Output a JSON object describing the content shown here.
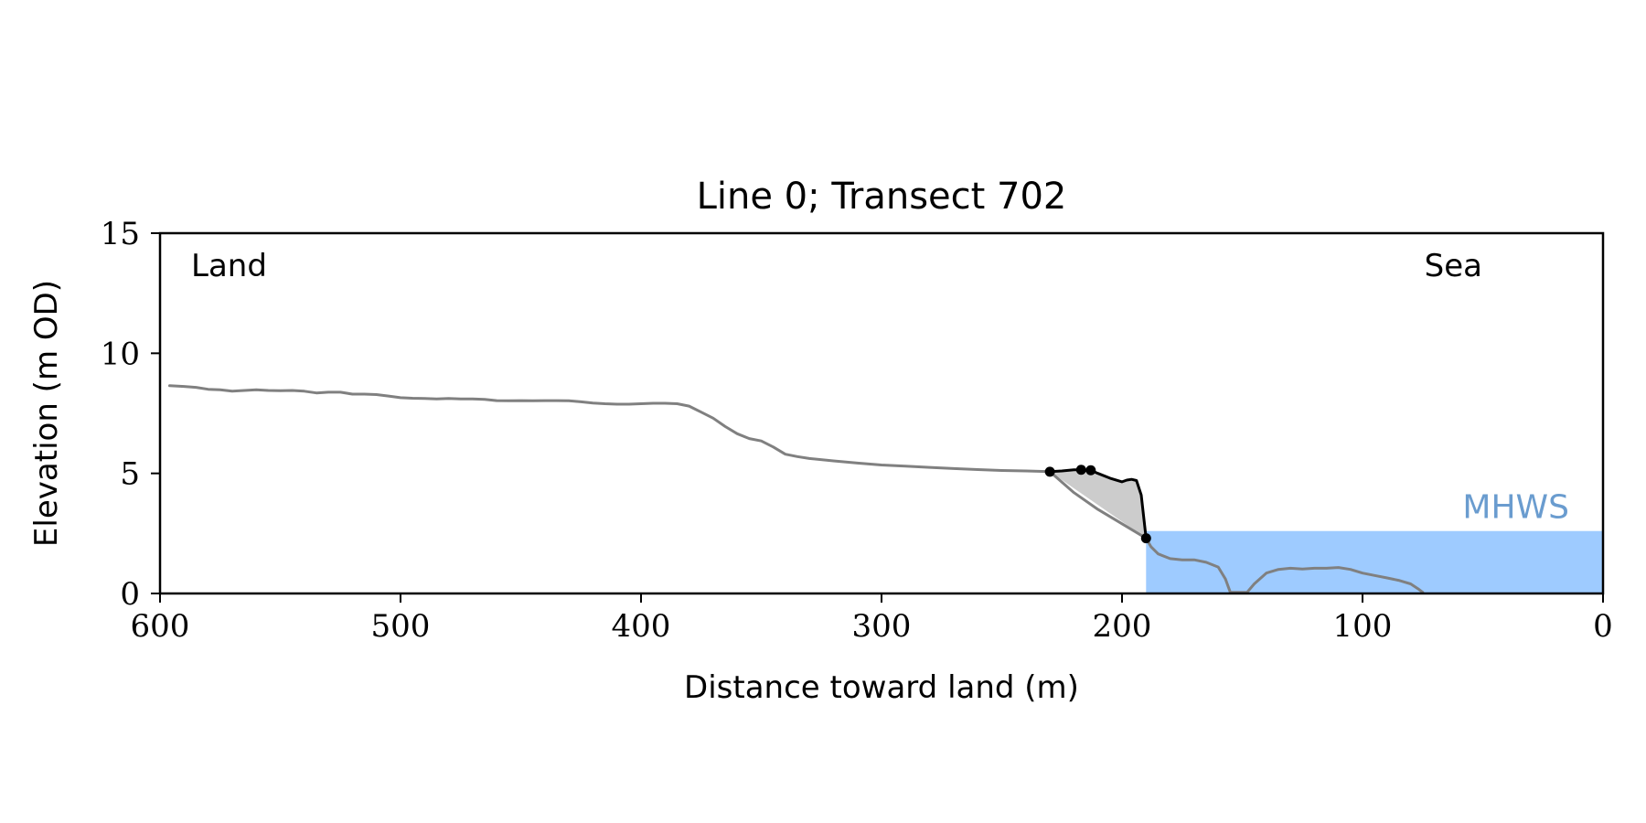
{
  "chart_data": {
    "type": "line",
    "title": "Line 0; Transect 702",
    "xlabel": "Distance toward land (m)",
    "ylabel": "Elevation (m OD)",
    "xlim": [
      600,
      0
    ],
    "ylim": [
      0,
      15
    ],
    "xticks": [
      {
        "value": 600,
        "label": "600"
      },
      {
        "value": 500,
        "label": "500"
      },
      {
        "value": 400,
        "label": "400"
      },
      {
        "value": 300,
        "label": "300"
      },
      {
        "value": 200,
        "label": "200"
      },
      {
        "value": 100,
        "label": "100"
      },
      {
        "value": 0,
        "label": "0"
      }
    ],
    "yticks": [
      {
        "value": 0,
        "label": "0"
      },
      {
        "value": 5,
        "label": "5"
      },
      {
        "value": 10,
        "label": "10"
      },
      {
        "value": 15,
        "label": "15"
      }
    ],
    "grid": false,
    "annotations": {
      "land": "Land",
      "sea": "Sea",
      "water_level_label": "MHWS"
    },
    "water_level": {
      "value": 2.6,
      "x_from": 190,
      "x_to": 0,
      "color": "#9ecbff",
      "label_color": "#6a9ccf"
    },
    "profile_color": "#808080",
    "feature_color": "#000000",
    "fill_color": "#cccccc",
    "profile": [
      [
        596,
        8.65
      ],
      [
        590,
        8.62
      ],
      [
        585,
        8.58
      ],
      [
        580,
        8.5
      ],
      [
        575,
        8.48
      ],
      [
        570,
        8.42
      ],
      [
        565,
        8.45
      ],
      [
        560,
        8.48
      ],
      [
        555,
        8.45
      ],
      [
        550,
        8.44
      ],
      [
        545,
        8.45
      ],
      [
        540,
        8.42
      ],
      [
        535,
        8.35
      ],
      [
        530,
        8.38
      ],
      [
        525,
        8.38
      ],
      [
        520,
        8.3
      ],
      [
        515,
        8.3
      ],
      [
        510,
        8.28
      ],
      [
        505,
        8.22
      ],
      [
        500,
        8.15
      ],
      [
        495,
        8.13
      ],
      [
        490,
        8.12
      ],
      [
        485,
        8.1
      ],
      [
        480,
        8.12
      ],
      [
        475,
        8.1
      ],
      [
        470,
        8.1
      ],
      [
        465,
        8.08
      ],
      [
        460,
        8.03
      ],
      [
        455,
        8.02
      ],
      [
        450,
        8.03
      ],
      [
        445,
        8.02
      ],
      [
        440,
        8.03
      ],
      [
        435,
        8.03
      ],
      [
        430,
        8.02
      ],
      [
        425,
        7.98
      ],
      [
        420,
        7.93
      ],
      [
        415,
        7.9
      ],
      [
        410,
        7.88
      ],
      [
        405,
        7.88
      ],
      [
        400,
        7.9
      ],
      [
        395,
        7.92
      ],
      [
        390,
        7.92
      ],
      [
        385,
        7.9
      ],
      [
        380,
        7.8
      ],
      [
        375,
        7.55
      ],
      [
        370,
        7.3
      ],
      [
        365,
        6.95
      ],
      [
        360,
        6.65
      ],
      [
        355,
        6.45
      ],
      [
        350,
        6.35
      ],
      [
        345,
        6.1
      ],
      [
        340,
        5.8
      ],
      [
        335,
        5.7
      ],
      [
        330,
        5.62
      ],
      [
        320,
        5.52
      ],
      [
        310,
        5.43
      ],
      [
        300,
        5.35
      ],
      [
        290,
        5.3
      ],
      [
        280,
        5.25
      ],
      [
        270,
        5.2
      ],
      [
        260,
        5.16
      ],
      [
        250,
        5.12
      ],
      [
        240,
        5.1
      ],
      [
        230,
        5.07
      ],
      [
        220,
        4.2
      ],
      [
        210,
        3.5
      ],
      [
        200,
        2.9
      ],
      [
        190,
        2.3
      ],
      [
        188,
        1.95
      ],
      [
        185,
        1.65
      ],
      [
        180,
        1.45
      ],
      [
        175,
        1.4
      ],
      [
        170,
        1.4
      ],
      [
        165,
        1.3
      ],
      [
        160,
        1.1
      ],
      [
        157,
        0.6
      ],
      [
        155,
        0.05
      ],
      [
        148,
        0.05
      ],
      [
        145,
        0.4
      ],
      [
        140,
        0.85
      ],
      [
        135,
        1.0
      ],
      [
        130,
        1.05
      ],
      [
        125,
        1.02
      ],
      [
        120,
        1.05
      ],
      [
        115,
        1.05
      ],
      [
        110,
        1.08
      ],
      [
        105,
        1.0
      ],
      [
        100,
        0.85
      ],
      [
        95,
        0.75
      ],
      [
        90,
        0.65
      ],
      [
        85,
        0.55
      ],
      [
        80,
        0.4
      ],
      [
        77,
        0.2
      ],
      [
        75,
        0.05
      ]
    ],
    "feature": [
      [
        230,
        5.07
      ],
      [
        225,
        5.1
      ],
      [
        220,
        5.15
      ],
      [
        217,
        5.15
      ],
      [
        215,
        5.12
      ],
      [
        213,
        5.13
      ],
      [
        210,
        5.0
      ],
      [
        205,
        4.8
      ],
      [
        200,
        4.65
      ],
      [
        198,
        4.72
      ],
      [
        196,
        4.75
      ],
      [
        194,
        4.7
      ],
      [
        192,
        4.1
      ],
      [
        190,
        2.3
      ]
    ],
    "markers": [
      [
        230,
        5.07
      ],
      [
        217,
        5.15
      ],
      [
        213,
        5.13
      ],
      [
        190,
        2.3
      ]
    ],
    "fill_polygon": [
      [
        230,
        5.07
      ],
      [
        225,
        5.1
      ],
      [
        220,
        5.15
      ],
      [
        217,
        5.15
      ],
      [
        215,
        5.12
      ],
      [
        213,
        5.13
      ],
      [
        210,
        5.0
      ],
      [
        205,
        4.8
      ],
      [
        200,
        4.65
      ],
      [
        198,
        4.72
      ],
      [
        196,
        4.75
      ],
      [
        194,
        4.7
      ],
      [
        192,
        4.1
      ],
      [
        190,
        2.3
      ]
    ]
  }
}
